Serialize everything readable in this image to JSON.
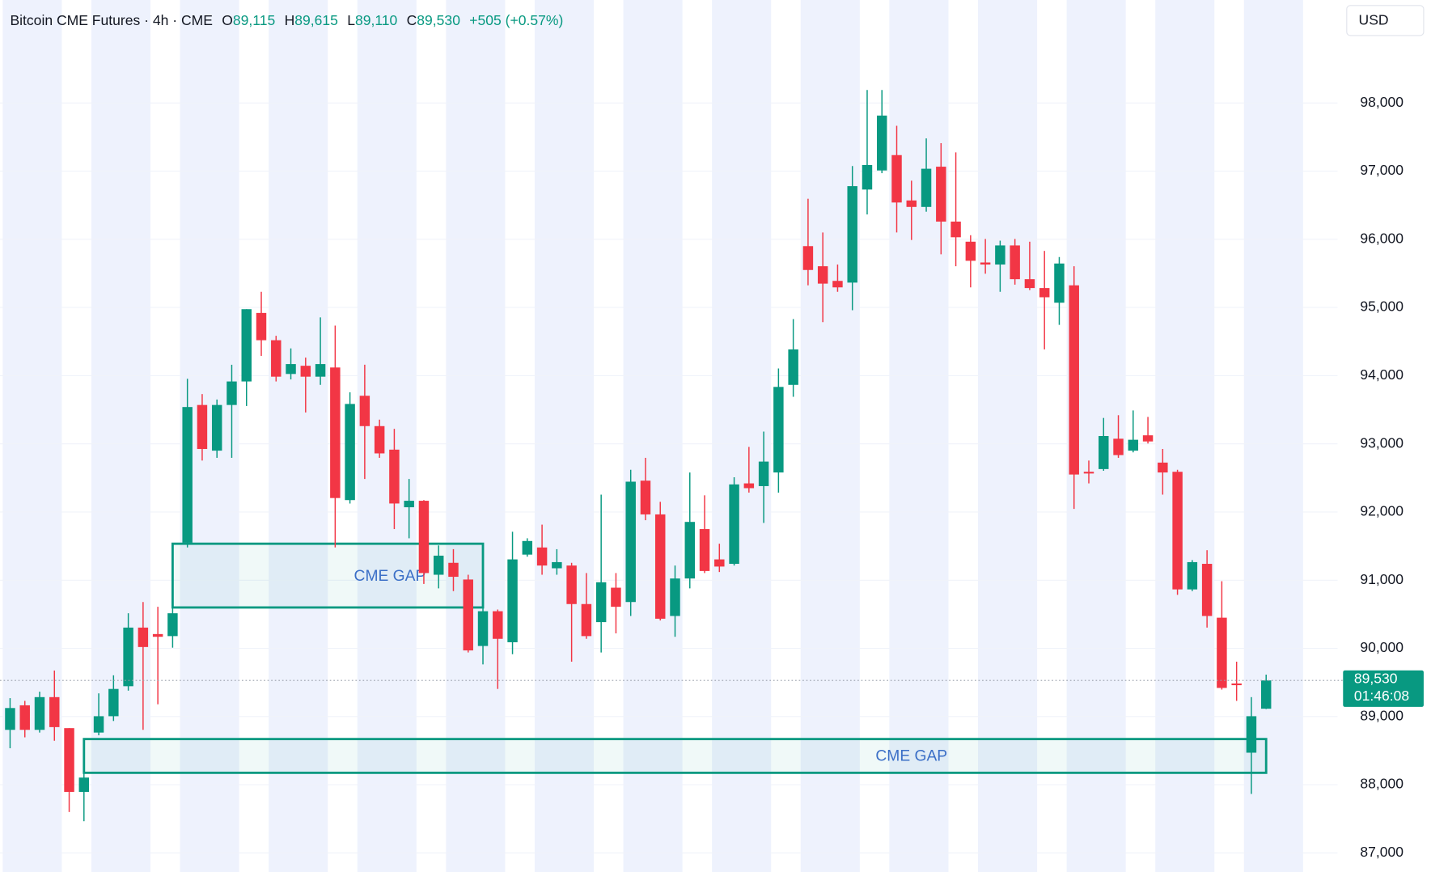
{
  "chart_data": {
    "type": "candlestick",
    "title": "Bitcoin CME Futures · 4h · CME",
    "legend": [
      {
        "key": "O",
        "value": "89,115"
      },
      {
        "key": "H",
        "value": "89,615"
      },
      {
        "key": "L",
        "value": "89,110"
      },
      {
        "key": "C",
        "value": "89,530"
      }
    ],
    "change": "+505 (+0.57%)",
    "currency": "USD",
    "up_color": "#089981",
    "down_color": "#f23645",
    "grid": true,
    "ylim": [
      86720,
      99510
    ],
    "yticks": [
      {
        "value": 87000,
        "label": "87,000"
      },
      {
        "value": 88000,
        "label": "88,000"
      },
      {
        "value": 89000,
        "label": "89,000"
      },
      {
        "value": 90000,
        "label": "90,000"
      },
      {
        "value": 91000,
        "label": "91,000"
      },
      {
        "value": 92000,
        "label": "92,000"
      },
      {
        "value": 93000,
        "label": "93,000"
      },
      {
        "value": 94000,
        "label": "94,000"
      },
      {
        "value": 95000,
        "label": "95,000"
      },
      {
        "value": 96000,
        "label": "96,000"
      },
      {
        "value": 97000,
        "label": "97,000"
      },
      {
        "value": 98000,
        "label": "98,000"
      }
    ],
    "open": [
      88805,
      89165,
      88805,
      89285,
      88830,
      87895,
      88765,
      89005,
      89445,
      90305,
      90210,
      90180,
      91550,
      93570,
      92900,
      93570,
      93915,
      94920,
      94520,
      94025,
      94145,
      93985,
      94120,
      92175,
      93705,
      93260,
      92915,
      92070,
      92165,
      91080,
      91255,
      91010,
      90035,
      90545,
      90090,
      91375,
      91480,
      91175,
      91215,
      90650,
      90385,
      90890,
      90680,
      92460,
      91965,
      90475,
      91025,
      91750,
      91305,
      91240,
      92420,
      92380,
      92580,
      93865,
      95900,
      95605,
      95390,
      95365,
      96730,
      97010,
      97235,
      96570,
      96475,
      97065,
      96260,
      95965,
      95660,
      95630,
      95910,
      95415,
      95285,
      95070,
      95325,
      92590,
      92630,
      93075,
      92900,
      93125,
      92725,
      92590,
      90865,
      91240,
      90450,
      89485,
      88470,
      89115
    ],
    "high": [
      89270,
      89230,
      89365,
      89675,
      88830,
      88200,
      89340,
      89605,
      90515,
      90680,
      90610,
      90680,
      93955,
      93730,
      93650,
      94160,
      94975,
      95230,
      94585,
      94400,
      94265,
      94855,
      94735,
      93755,
      94160,
      93355,
      93220,
      92485,
      92175,
      91510,
      91455,
      91080,
      90680,
      90570,
      91710,
      91615,
      91815,
      91455,
      91255,
      91105,
      92255,
      91105,
      92620,
      92795,
      92150,
      91215,
      92580,
      92245,
      91535,
      92510,
      92955,
      93180,
      94105,
      94830,
      96595,
      96100,
      95630,
      97075,
      98190,
      98190,
      97665,
      96860,
      97480,
      97410,
      97275,
      96060,
      96005,
      95980,
      96005,
      95965,
      95830,
      95740,
      95605,
      92755,
      93380,
      93420,
      93490,
      93395,
      92925,
      92620,
      91295,
      91440,
      90985,
      89805,
      89285,
      89615
    ],
    "low": [
      88535,
      88695,
      88765,
      88645,
      87600,
      87465,
      88725,
      88935,
      89380,
      88805,
      89180,
      90010,
      91480,
      92755,
      92795,
      92795,
      93555,
      94290,
      93915,
      93945,
      93460,
      93865,
      91480,
      92125,
      92485,
      92795,
      91750,
      91615,
      90945,
      90880,
      90840,
      89940,
      89765,
      89405,
      89915,
      91345,
      91080,
      91080,
      89805,
      90140,
      89940,
      90220,
      90475,
      91880,
      90410,
      90170,
      90880,
      91105,
      91120,
      91215,
      92285,
      91840,
      92285,
      93690,
      95325,
      94785,
      95230,
      94960,
      96365,
      96970,
      96100,
      95990,
      96405,
      95780,
      95605,
      95295,
      95495,
      95230,
      95335,
      95255,
      94385,
      94745,
      92045,
      92420,
      92605,
      92795,
      92875,
      93005,
      92255,
      90785,
      90840,
      90305,
      89395,
      89230,
      87865,
      89110
    ],
    "close": [
      89125,
      88805,
      89285,
      88845,
      87895,
      88105,
      89005,
      89405,
      90305,
      90020,
      90170,
      90515,
      93540,
      92925,
      93570,
      93915,
      94975,
      94520,
      93985,
      94170,
      93985,
      94170,
      92205,
      93585,
      93260,
      92860,
      92125,
      92165,
      91105,
      91360,
      91050,
      89970,
      90545,
      90140,
      91305,
      91575,
      91215,
      91265,
      90650,
      90180,
      90970,
      90610,
      92445,
      91965,
      90435,
      91025,
      91855,
      91135,
      91200,
      92405,
      92350,
      92740,
      93835,
      94385,
      95550,
      95350,
      95295,
      96780,
      97090,
      97815,
      96540,
      96475,
      97035,
      96260,
      96030,
      95685,
      95630,
      95910,
      95415,
      95285,
      95150,
      95645,
      92550,
      92565,
      93115,
      92835,
      93060,
      93035,
      92580,
      90865,
      91265,
      90475,
      89420,
      89460,
      89005,
      89530
    ],
    "last_price": {
      "value": 89530,
      "label": "89,530"
    },
    "countdown": "01:46:08",
    "gaps": [
      {
        "label": "CME GAP",
        "top": 91535,
        "bottom": 90600,
        "start": 11,
        "end": 32
      },
      {
        "label": "CME GAP",
        "top": 88670,
        "bottom": 88175,
        "start": 5,
        "end": 85
      }
    ]
  }
}
